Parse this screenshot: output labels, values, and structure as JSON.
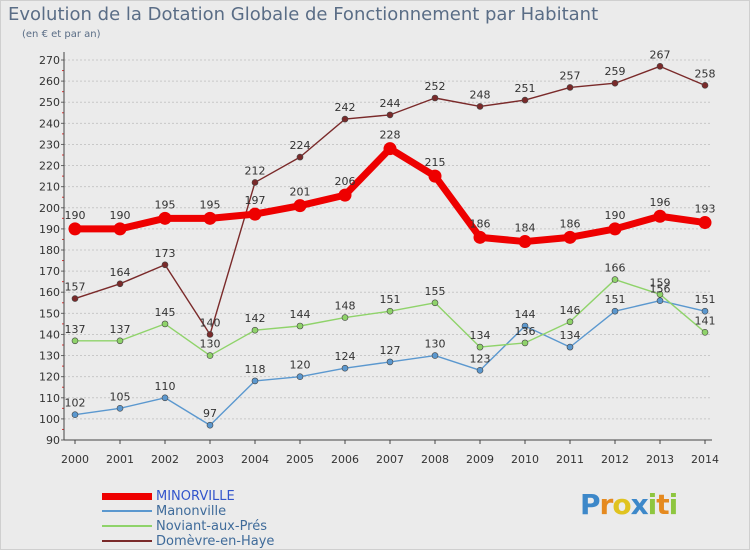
{
  "title": "Evolution de la Dotation Globale de Fonctionnement par Habitant",
  "subtitle": "(en € et par an)",
  "logo": {
    "text": "Proxiti",
    "letters": [
      "P",
      "r",
      "o",
      "x",
      "i",
      "t",
      "i"
    ],
    "colors": [
      "#3d88c9",
      "#e58a1f",
      "#e0c31f",
      "#3d88c9",
      "#8ec63f",
      "#e58a1f",
      "#8ec63f"
    ]
  },
  "chart_data": {
    "type": "line",
    "title": "Evolution de la Dotation Globale de Fonctionnement par Habitant",
    "subtitle": "(en € et par an)",
    "xlabel": "",
    "ylabel": "",
    "x": [
      "2000",
      "2001",
      "2002",
      "2003",
      "2004",
      "2005",
      "2006",
      "2007",
      "2008",
      "2009",
      "2010",
      "2011",
      "2012",
      "2013",
      "2014"
    ],
    "ylim": [
      90,
      270
    ],
    "yticks": [
      90,
      100,
      110,
      120,
      130,
      140,
      150,
      160,
      170,
      180,
      190,
      200,
      210,
      220,
      230,
      240,
      250,
      260,
      270
    ],
    "grid": "horizontal",
    "legend_position": "bottom-left",
    "series": [
      {
        "name": "MINORVILLE",
        "color": "#ee0000",
        "bold": true,
        "values": [
          190,
          190,
          195,
          195,
          197,
          201,
          206,
          228,
          215,
          186,
          184,
          186,
          190,
          196,
          193
        ]
      },
      {
        "name": "Manonville",
        "color": "#5b98cf",
        "bold": false,
        "values": [
          102,
          105,
          110,
          97,
          118,
          120,
          124,
          127,
          130,
          123,
          144,
          134,
          151,
          156,
          151
        ]
      },
      {
        "name": "Noviant-aux-Prés",
        "color": "#8fd36a",
        "bold": false,
        "values": [
          137,
          137,
          145,
          130,
          142,
          144,
          148,
          151,
          155,
          134,
          136,
          146,
          166,
          159,
          141
        ]
      },
      {
        "name": "Domèvre-en-Haye",
        "color": "#7a2a2a",
        "bold": false,
        "values": [
          157,
          164,
          173,
          140,
          212,
          224,
          242,
          244,
          252,
          248,
          251,
          257,
          259,
          267,
          258
        ]
      }
    ]
  }
}
